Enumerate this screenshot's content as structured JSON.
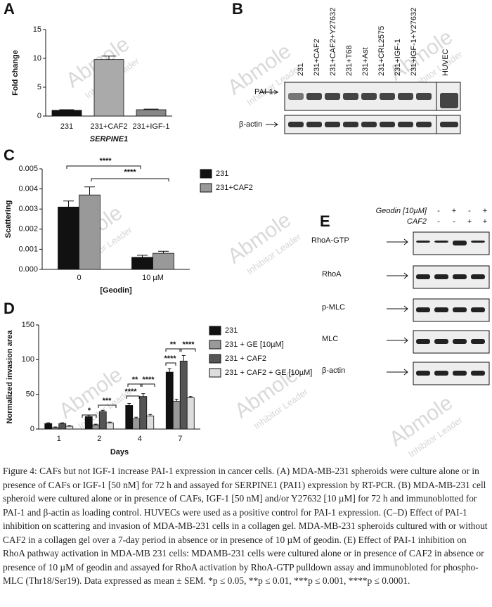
{
  "chart_data": [
    {
      "type": "bar",
      "panel": "A",
      "ylabel": "Fold change",
      "xlabel": "SERPINE1",
      "categories": [
        "231",
        "231+CAF2",
        "231+IGF-1"
      ],
      "values": [
        1,
        9.8,
        1.1
      ],
      "errors": [
        0.1,
        0.6,
        0.1
      ],
      "colors": [
        "#111111",
        "#aaaaaa",
        "#888888"
      ],
      "ylim": [
        0,
        15
      ],
      "yticks": [
        0,
        5,
        10,
        15
      ]
    },
    {
      "type": "bar",
      "panel": "C",
      "ylabel": "Scattering",
      "xlabel": "[Geodin]",
      "categories": [
        "0",
        "10 µM"
      ],
      "series": [
        {
          "name": "231",
          "color": "#111111",
          "values": [
            0.0031,
            0.0006
          ],
          "errors": [
            0.0003,
            0.0001
          ]
        },
        {
          "name": "231+CAF2",
          "color": "#999999",
          "values": [
            0.0037,
            0.0008
          ],
          "errors": [
            0.0004,
            0.0001
          ]
        }
      ],
      "ylim": [
        0,
        0.005
      ],
      "yticks": [
        {
          "value": 0,
          "label": "0.000"
        },
        0.001,
        0.002,
        0.003,
        0.004,
        0.005
      ],
      "annotations": [
        "****",
        "****"
      ]
    },
    {
      "type": "bar",
      "panel": "D",
      "ylabel": "Normalized invasion area",
      "xlabel": "Days",
      "categories": [
        "1",
        "2",
        "4",
        "7"
      ],
      "series": [
        {
          "name": "231",
          "color": "#111111",
          "values": [
            8,
            18,
            34,
            82
          ],
          "errors": [
            1,
            2,
            3,
            5
          ]
        },
        {
          "name": "231 + GE [10µM]",
          "color": "#999999",
          "values": [
            2,
            6,
            15,
            40
          ],
          "errors": [
            1,
            1,
            2,
            3
          ]
        },
        {
          "name": "231 + CAF2",
          "color": "#555555",
          "values": [
            8,
            25,
            47,
            98
          ],
          "errors": [
            1,
            2,
            4,
            8
          ]
        },
        {
          "name": "231 + CAF2 + GE [10µM]",
          "color": "#dddddd",
          "values": [
            4,
            9,
            19,
            45
          ],
          "errors": [
            1,
            1,
            2,
            2
          ]
        }
      ],
      "ylim": [
        0,
        150
      ],
      "yticks": [
        0,
        50,
        100,
        150
      ],
      "annotations": [
        "*",
        "***",
        "****",
        "**",
        "****",
        "****",
        "**",
        "****"
      ]
    }
  ],
  "blot_b": {
    "panel": "B",
    "lanes": [
      "231",
      "231+CAF2",
      "231+CAF2+Y27632",
      "231+T68",
      "231+Ast",
      "231+CRL2575",
      "231+IGF-1",
      "231+IGF-1+Y27632",
      "HUVEC"
    ],
    "rows": [
      "PAI-1",
      "β-actin"
    ]
  },
  "blot_e": {
    "panel": "E",
    "conditions": [
      {
        "label": "Geodin [10µM]",
        "signs": [
          "-",
          "+",
          "-",
          "+"
        ]
      },
      {
        "label": "CAF2",
        "signs": [
          "-",
          "-",
          "+",
          "+"
        ]
      }
    ],
    "rows": [
      "RhoA-GTP",
      "RhoA",
      "p-MLC",
      "MLC",
      "β-actin"
    ]
  },
  "watermark": [
    "Abmole",
    "Inhibitor Leader"
  ],
  "caption": "Figure 4: CAFs but not IGF-1 increase PAI-1 expression in cancer cells. (A) MDA-MB-231 spheroids were culture alone or in presence of CAFs or IGF-1 [50 nM] for 72 h and assayed for SERPINE1 (PAI1) expression by RT-PCR. (B) MDA-MB-231 cell spheroid were cultured alone or in presence of CAFs, IGF-1 [50 nM] and/or Y27632 [10 µM] for 72 h and immunoblotted for PAI-1 and β-actin as loading control. HUVECs were used as a positive control for PAI-1 expression. (C–D) Effect of PAI-1 inhibition on scattering and invasion of MDA-MB-231 cells in a collagen gel. MDA-MB-231 spheroids cultured with or without CAF2 in a collagen gel over a 7-day period in absence or in presence of 10 µM of geodin. (E) Effect of PAI-1 inhibition on RhoA pathway activation in MDA-MB 231 cells: MDAMB-231 cells were cultured alone or in presence of CAF2 in absence or presence of 10 µM of geodin and assayed for RhoA activation by RhoA-GTP pulldown assay and immunobloted for phospho-MLC (Thr18/Ser19). Data expressed as mean ± SEM. *p ≤ 0.05, **p ≤ 0.01, ***p ≤ 0.001, ****p ≤ 0.0001."
}
